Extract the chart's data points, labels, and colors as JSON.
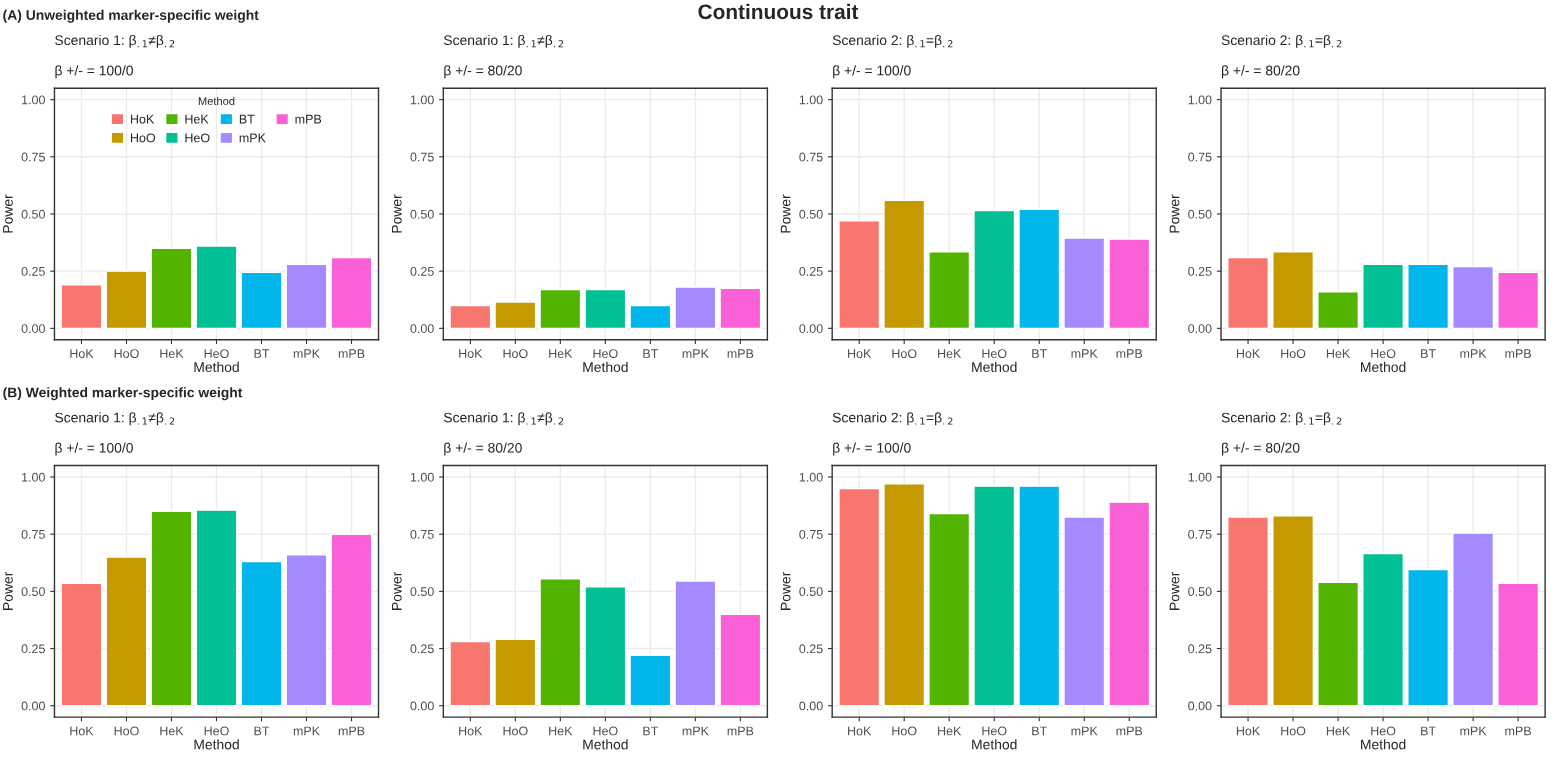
{
  "chart_data": [
    {
      "type": "bar",
      "title": "Scenario 1: β$_{.1}$≠β$_{.2}$",
      "subtitle": "β +/- = 100/0",
      "xlabel": "Method",
      "ylabel": "Power",
      "annotations": [
        "Continuous trait",
        "(A) Unweighted marker-specific weight"
      ],
      "legend": "top",
      "legend_title": "Method",
      "categories": [
        "HoK",
        "HoO",
        "HeK",
        "HeO",
        "BT",
        "mPK",
        "mPB"
      ],
      "series": [
        {
          "name": "HoK",
          "color": "#f8766d",
          "values": [
            0.19,
            null,
            null,
            null,
            null,
            null,
            null
          ]
        },
        {
          "name": "HoO",
          "color": "#c49a00",
          "values": [
            null,
            0.25,
            null,
            null,
            null,
            null,
            null
          ]
        },
        {
          "name": "HeK",
          "color": "#53b400",
          "values": [
            null,
            null,
            0.35,
            null,
            null,
            null,
            null
          ]
        },
        {
          "name": "HeO",
          "color": "#00c094",
          "values": [
            null,
            null,
            null,
            0.36,
            null,
            null,
            null
          ]
        },
        {
          "name": "BT",
          "color": "#00b6eb",
          "values": [
            null,
            null,
            null,
            null,
            0.245,
            null,
            null
          ]
        },
        {
          "name": "mPK",
          "color": "#a58aff",
          "values": [
            null,
            null,
            null,
            null,
            null,
            0.28,
            null
          ]
        },
        {
          "name": "mPB",
          "color": "#fb61d7",
          "values": [
            null,
            null,
            null,
            null,
            null,
            null,
            0.31
          ]
        }
      ],
      "ylim": [
        -0.05,
        1.05
      ],
      "yticks": [
        {
          "value": 0,
          "label": "0.00"
        },
        {
          "value": 0.25,
          "label": "0.25"
        },
        {
          "value": 0.5,
          "label": "0.50"
        },
        {
          "value": 0.75,
          "label": "0.75"
        },
        {
          "value": 1,
          "label": "1.00"
        }
      ],
      "grid": true
    },
    {
      "type": "bar",
      "title": "Scenario 1: β$_{.1}$≠β$_{.2}$",
      "subtitle": "β +/- = 80/20",
      "xlabel": "Method",
      "ylabel": "Power",
      "categories": [
        "HoK",
        "HoO",
        "HeK",
        "HeO",
        "BT",
        "mPK",
        "mPB"
      ],
      "values": [
        0.1,
        0.115,
        0.17,
        0.17,
        0.1,
        0.18,
        0.175
      ],
      "colors": [
        "#f8766d",
        "#c49a00",
        "#53b400",
        "#00c094",
        "#00b6eb",
        "#a58aff",
        "#fb61d7"
      ],
      "ylim": [
        -0.05,
        1.05
      ],
      "yticks": [
        {
          "value": 0,
          "label": "0.00"
        },
        {
          "value": 0.25,
          "label": "0.25"
        },
        {
          "value": 0.5,
          "label": "0.50"
        },
        {
          "value": 0.75,
          "label": "0.75"
        },
        {
          "value": 1,
          "label": "1.00"
        }
      ],
      "grid": true
    },
    {
      "type": "bar",
      "title": "Scenario 2: β$_{.1}$=β$_{.2}$",
      "subtitle": "β +/- = 100/0",
      "xlabel": "Method",
      "ylabel": "Power",
      "categories": [
        "HoK",
        "HoO",
        "HeK",
        "HeO",
        "BT",
        "mPK",
        "mPB"
      ],
      "values": [
        0.47,
        0.56,
        0.335,
        0.515,
        0.52,
        0.395,
        0.39
      ],
      "colors": [
        "#f8766d",
        "#c49a00",
        "#53b400",
        "#00c094",
        "#00b6eb",
        "#a58aff",
        "#fb61d7"
      ],
      "ylim": [
        -0.05,
        1.05
      ],
      "yticks": [
        {
          "value": 0,
          "label": "0.00"
        },
        {
          "value": 0.25,
          "label": "0.25"
        },
        {
          "value": 0.5,
          "label": "0.50"
        },
        {
          "value": 0.75,
          "label": "0.75"
        },
        {
          "value": 1,
          "label": "1.00"
        }
      ],
      "grid": true
    },
    {
      "type": "bar",
      "title": "Scenario 2: β$_{.1}$=β$_{.2}$",
      "subtitle": "β +/- = 80/20",
      "xlabel": "Method",
      "ylabel": "Power",
      "categories": [
        "HoK",
        "HoO",
        "HeK",
        "HeO",
        "BT",
        "mPK",
        "mPB"
      ],
      "values": [
        0.31,
        0.335,
        0.16,
        0.28,
        0.28,
        0.27,
        0.245
      ],
      "colors": [
        "#f8766d",
        "#c49a00",
        "#53b400",
        "#00c094",
        "#00b6eb",
        "#a58aff",
        "#fb61d7"
      ],
      "ylim": [
        -0.05,
        1.05
      ],
      "yticks": [
        {
          "value": 0,
          "label": "0.00"
        },
        {
          "value": 0.25,
          "label": "0.25"
        },
        {
          "value": 0.5,
          "label": "0.50"
        },
        {
          "value": 0.75,
          "label": "0.75"
        },
        {
          "value": 1,
          "label": "1.00"
        }
      ],
      "grid": true
    },
    {
      "type": "bar",
      "title": "Scenario 1: β$_{.1}$≠β$_{.2}$",
      "subtitle": "β +/- = 100/0",
      "xlabel": "Method",
      "ylabel": "Power",
      "annotations": [
        "(B) Weighted marker-specific weight"
      ],
      "categories": [
        "HoK",
        "HoO",
        "HeK",
        "HeO",
        "BT",
        "mPK",
        "mPB"
      ],
      "values": [
        0.535,
        0.65,
        0.85,
        0.855,
        0.63,
        0.66,
        0.75
      ],
      "colors": [
        "#f8766d",
        "#c49a00",
        "#53b400",
        "#00c094",
        "#00b6eb",
        "#a58aff",
        "#fb61d7"
      ],
      "ylim": [
        -0.05,
        1.05
      ],
      "yticks": [
        {
          "value": 0,
          "label": "0.00"
        },
        {
          "value": 0.25,
          "label": "0.25"
        },
        {
          "value": 0.5,
          "label": "0.50"
        },
        {
          "value": 0.75,
          "label": "0.75"
        },
        {
          "value": 1,
          "label": "1.00"
        }
      ],
      "grid": true
    },
    {
      "type": "bar",
      "title": "Scenario 1: β$_{.1}$≠β$_{.2}$",
      "subtitle": "β +/- = 80/20",
      "xlabel": "Method",
      "ylabel": "Power",
      "categories": [
        "HoK",
        "HoO",
        "HeK",
        "HeO",
        "BT",
        "mPK",
        "mPB"
      ],
      "values": [
        0.28,
        0.29,
        0.555,
        0.52,
        0.22,
        0.545,
        0.4
      ],
      "colors": [
        "#f8766d",
        "#c49a00",
        "#53b400",
        "#00c094",
        "#00b6eb",
        "#a58aff",
        "#fb61d7"
      ],
      "ylim": [
        -0.05,
        1.05
      ],
      "yticks": [
        {
          "value": 0,
          "label": "0.00"
        },
        {
          "value": 0.25,
          "label": "0.25"
        },
        {
          "value": 0.5,
          "label": "0.50"
        },
        {
          "value": 0.75,
          "label": "0.75"
        },
        {
          "value": 1,
          "label": "1.00"
        }
      ],
      "grid": true
    },
    {
      "type": "bar",
      "title": "Scenario 2: β$_{.1}$=β$_{.2}$",
      "subtitle": "β +/- = 100/0",
      "xlabel": "Method",
      "ylabel": "Power",
      "categories": [
        "HoK",
        "HoO",
        "HeK",
        "HeO",
        "BT",
        "mPK",
        "mPB"
      ],
      "values": [
        0.95,
        0.97,
        0.84,
        0.96,
        0.96,
        0.825,
        0.89
      ],
      "colors": [
        "#f8766d",
        "#c49a00",
        "#53b400",
        "#00c094",
        "#00b6eb",
        "#a58aff",
        "#fb61d7"
      ],
      "ylim": [
        -0.05,
        1.05
      ],
      "yticks": [
        {
          "value": 0,
          "label": "0.00"
        },
        {
          "value": 0.25,
          "label": "0.25"
        },
        {
          "value": 0.5,
          "label": "0.50"
        },
        {
          "value": 0.75,
          "label": "0.75"
        },
        {
          "value": 1,
          "label": "1.00"
        }
      ],
      "grid": true
    },
    {
      "type": "bar",
      "title": "Scenario 2: β$_{.1}$=β$_{.2}$",
      "subtitle": "β +/- = 80/20",
      "xlabel": "Method",
      "ylabel": "Power",
      "categories": [
        "HoK",
        "HoO",
        "HeK",
        "HeO",
        "BT",
        "mPK",
        "mPB"
      ],
      "values": [
        0.825,
        0.83,
        0.54,
        0.665,
        0.595,
        0.755,
        0.535
      ],
      "colors": [
        "#f8766d",
        "#c49a00",
        "#53b400",
        "#00c094",
        "#00b6eb",
        "#a58aff",
        "#fb61d7"
      ],
      "ylim": [
        -0.05,
        1.05
      ],
      "yticks": [
        {
          "value": 0,
          "label": "0.00"
        },
        {
          "value": 0.25,
          "label": "0.25"
        },
        {
          "value": 0.5,
          "label": "0.50"
        },
        {
          "value": 0.75,
          "label": "0.75"
        },
        {
          "value": 1,
          "label": "1.00"
        }
      ],
      "grid": true
    }
  ]
}
